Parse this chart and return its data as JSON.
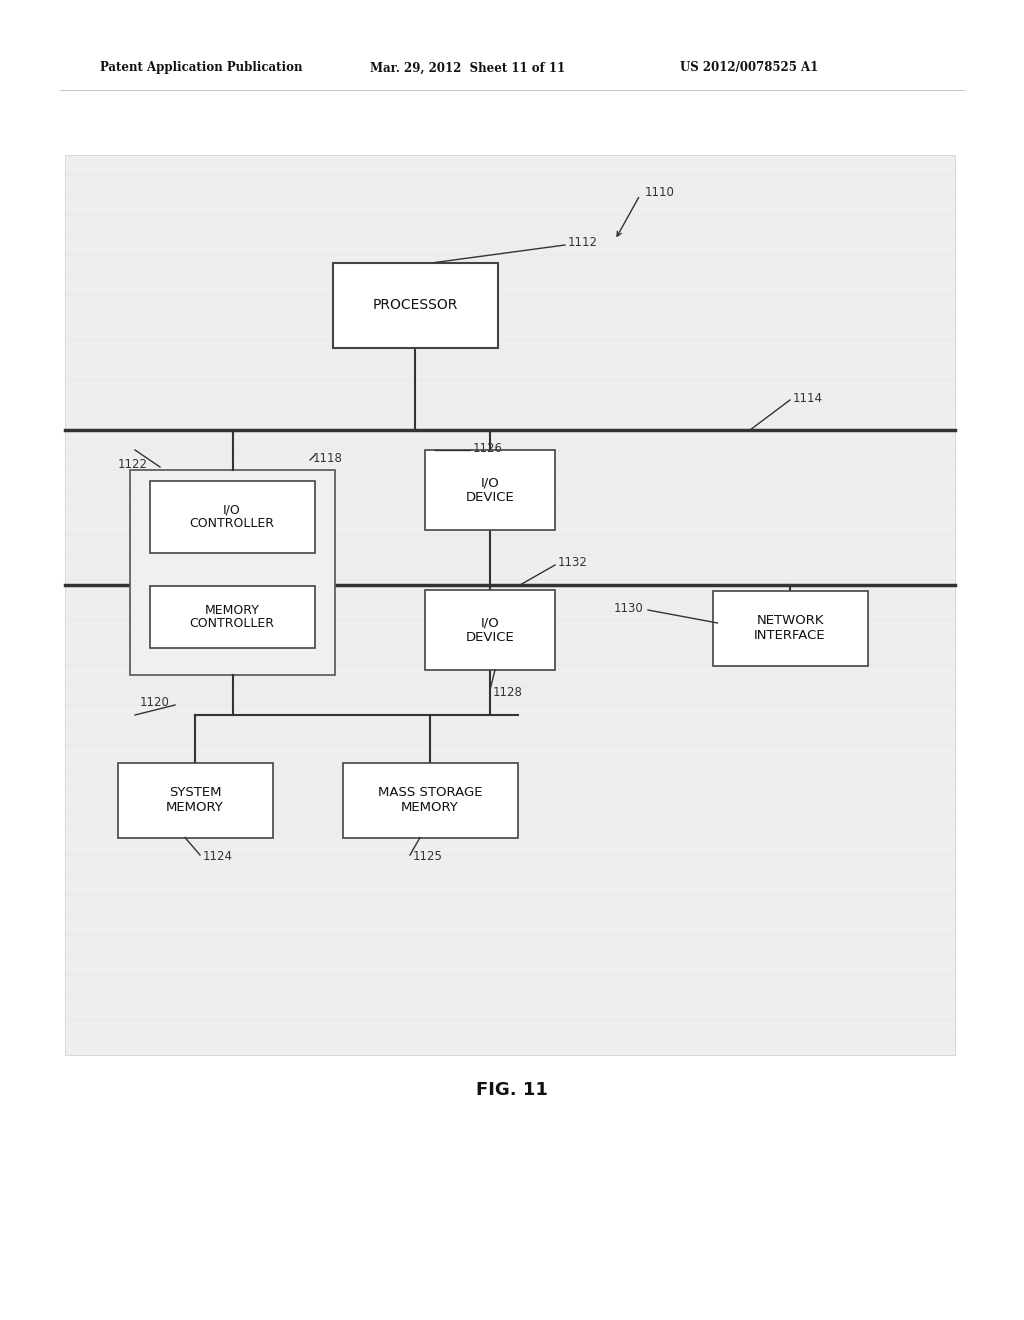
{
  "page_bg": "#ffffff",
  "diagram_bg": "#e8e8e8",
  "header_text_left": "Patent Application Publication",
  "header_text_mid": "Mar. 29, 2012  Sheet 11 of 11",
  "header_text_right": "US 2012/0078525 A1",
  "fig_label": "FIG. 11",
  "line_color": "#333333",
  "box_edge_color": "#444444",
  "box_face_color": "#ffffff",
  "label_color": "#333333",
  "font_size_box": 9,
  "font_size_label": 8.5,
  "font_size_header": 8.5,
  "font_size_fig": 13
}
